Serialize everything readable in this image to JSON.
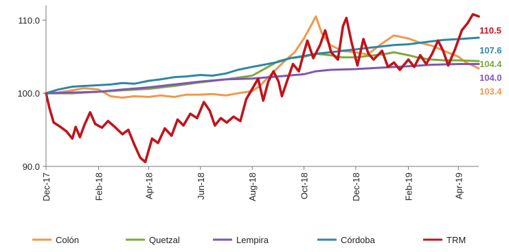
{
  "chart_data": {
    "type": "line",
    "title": "",
    "xlabel": "",
    "ylabel": "",
    "ylim": [
      90,
      112
    ],
    "xlim": [
      "2017-12-01",
      "2019-04-25"
    ],
    "y_ticks": [
      "90.0",
      "100.0",
      "110.0"
    ],
    "x_ticks": [
      {
        "date": "2017-12-01",
        "label": "Dec-17"
      },
      {
        "date": "2018-02-01",
        "label": "Feb-18"
      },
      {
        "date": "2018-04-01",
        "label": "Apr-18"
      },
      {
        "date": "2018-06-01",
        "label": "Jun-18"
      },
      {
        "date": "2018-08-01",
        "label": "Aug-18"
      },
      {
        "date": "2018-10-01",
        "label": "Oct-18"
      },
      {
        "date": "2018-12-01",
        "label": "Dec-18"
      },
      {
        "date": "2019-02-01",
        "label": "Feb-19"
      },
      {
        "date": "2019-04-01",
        "label": "Apr-19"
      }
    ],
    "grid": false,
    "legend_position": "bottom",
    "series": [
      {
        "name": "Colón",
        "color": "#F2974A",
        "end_label": "103.4",
        "points": [
          [
            "2017-12-01",
            100.0
          ],
          [
            "2017-12-15",
            100.1
          ],
          [
            "2018-01-01",
            100.4
          ],
          [
            "2018-01-15",
            100.7
          ],
          [
            "2018-02-01",
            100.5
          ],
          [
            "2018-02-15",
            99.6
          ],
          [
            "2018-03-01",
            99.4
          ],
          [
            "2018-03-15",
            99.6
          ],
          [
            "2018-04-01",
            99.5
          ],
          [
            "2018-04-15",
            99.7
          ],
          [
            "2018-05-01",
            99.5
          ],
          [
            "2018-05-15",
            99.8
          ],
          [
            "2018-06-01",
            99.8
          ],
          [
            "2018-06-15",
            99.9
          ],
          [
            "2018-07-01",
            99.7
          ],
          [
            "2018-07-15",
            100.0
          ],
          [
            "2018-08-01",
            100.3
          ],
          [
            "2018-08-10",
            101.0
          ],
          [
            "2018-08-20",
            102.2
          ],
          [
            "2018-09-01",
            103.6
          ],
          [
            "2018-09-10",
            104.6
          ],
          [
            "2018-09-20",
            105.6
          ],
          [
            "2018-10-01",
            107.5
          ],
          [
            "2018-10-10",
            109.4
          ],
          [
            "2018-10-15",
            110.5
          ],
          [
            "2018-10-22",
            108.2
          ],
          [
            "2018-11-01",
            106.6
          ],
          [
            "2018-11-15",
            105.8
          ],
          [
            "2018-12-01",
            105.6
          ],
          [
            "2018-12-15",
            105.3
          ],
          [
            "2019-01-01",
            106.8
          ],
          [
            "2019-01-15",
            107.9
          ],
          [
            "2019-02-01",
            107.5
          ],
          [
            "2019-02-15",
            106.9
          ],
          [
            "2019-03-01",
            106.5
          ],
          [
            "2019-03-15",
            105.8
          ],
          [
            "2019-04-01",
            105.0
          ],
          [
            "2019-04-10",
            104.2
          ],
          [
            "2019-04-25",
            103.4
          ]
        ]
      },
      {
        "name": "Quetzal",
        "color": "#7EA83B",
        "end_label": "104.4",
        "points": [
          [
            "2017-12-01",
            100.0
          ],
          [
            "2018-01-01",
            100.0
          ],
          [
            "2018-02-01",
            100.2
          ],
          [
            "2018-03-01",
            100.4
          ],
          [
            "2018-04-01",
            100.6
          ],
          [
            "2018-05-01",
            101.0
          ],
          [
            "2018-06-01",
            101.5
          ],
          [
            "2018-07-01",
            101.9
          ],
          [
            "2018-08-01",
            102.4
          ],
          [
            "2018-08-15",
            103.3
          ],
          [
            "2018-09-01",
            104.4
          ],
          [
            "2018-09-15",
            104.8
          ],
          [
            "2018-10-01",
            105.0
          ],
          [
            "2018-10-15",
            105.4
          ],
          [
            "2018-11-01",
            105.2
          ],
          [
            "2018-11-15",
            104.9
          ],
          [
            "2018-12-01",
            104.9
          ],
          [
            "2018-12-15",
            105.1
          ],
          [
            "2019-01-01",
            105.3
          ],
          [
            "2019-01-15",
            105.6
          ],
          [
            "2019-02-01",
            105.2
          ],
          [
            "2019-02-15",
            104.8
          ],
          [
            "2019-03-01",
            104.6
          ],
          [
            "2019-03-15",
            104.5
          ],
          [
            "2019-04-01",
            104.5
          ],
          [
            "2019-04-25",
            104.4
          ]
        ]
      },
      {
        "name": "Lempira",
        "color": "#7E57B3",
        "end_label": "104.0",
        "points": [
          [
            "2017-12-01",
            100.0
          ],
          [
            "2018-01-01",
            100.1
          ],
          [
            "2018-02-01",
            100.2
          ],
          [
            "2018-03-01",
            100.5
          ],
          [
            "2018-04-01",
            100.8
          ],
          [
            "2018-05-01",
            101.2
          ],
          [
            "2018-06-01",
            101.6
          ],
          [
            "2018-07-01",
            101.9
          ],
          [
            "2018-08-01",
            102.0
          ],
          [
            "2018-09-01",
            102.3
          ],
          [
            "2018-10-01",
            102.6
          ],
          [
            "2018-10-15",
            103.0
          ],
          [
            "2018-11-01",
            103.2
          ],
          [
            "2018-12-01",
            103.3
          ],
          [
            "2019-01-01",
            103.5
          ],
          [
            "2019-02-01",
            103.7
          ],
          [
            "2019-03-01",
            103.9
          ],
          [
            "2019-04-01",
            104.0
          ],
          [
            "2019-04-25",
            104.0
          ]
        ]
      },
      {
        "name": "Córdoba",
        "color": "#2E86A6",
        "end_label": "107.6",
        "points": [
          [
            "2017-12-01",
            100.0
          ],
          [
            "2017-12-15",
            100.5
          ],
          [
            "2018-01-01",
            100.9
          ],
          [
            "2018-01-15",
            101.0
          ],
          [
            "2018-02-01",
            101.1
          ],
          [
            "2018-02-15",
            101.2
          ],
          [
            "2018-03-01",
            101.4
          ],
          [
            "2018-03-15",
            101.3
          ],
          [
            "2018-04-01",
            101.7
          ],
          [
            "2018-04-15",
            101.9
          ],
          [
            "2018-05-01",
            102.2
          ],
          [
            "2018-05-15",
            102.3
          ],
          [
            "2018-06-01",
            102.5
          ],
          [
            "2018-06-15",
            102.4
          ],
          [
            "2018-07-01",
            102.7
          ],
          [
            "2018-07-15",
            103.2
          ],
          [
            "2018-08-01",
            103.6
          ],
          [
            "2018-08-15",
            103.9
          ],
          [
            "2018-09-01",
            104.3
          ],
          [
            "2018-09-15",
            104.8
          ],
          [
            "2018-10-01",
            105.1
          ],
          [
            "2018-10-15",
            105.4
          ],
          [
            "2018-11-01",
            105.6
          ],
          [
            "2018-11-15",
            105.8
          ],
          [
            "2018-12-01",
            106.0
          ],
          [
            "2018-12-15",
            106.2
          ],
          [
            "2019-01-01",
            106.4
          ],
          [
            "2019-01-15",
            106.6
          ],
          [
            "2019-02-01",
            106.7
          ],
          [
            "2019-02-15",
            106.9
          ],
          [
            "2019-03-01",
            107.1
          ],
          [
            "2019-03-15",
            107.3
          ],
          [
            "2019-04-01",
            107.4
          ],
          [
            "2019-04-25",
            107.6
          ]
        ]
      },
      {
        "name": "TRM",
        "color": "#C0141C",
        "end_label": "110.5",
        "points": [
          [
            "2017-12-01",
            100.0
          ],
          [
            "2017-12-05",
            98.0
          ],
          [
            "2017-12-10",
            96.0
          ],
          [
            "2017-12-18",
            95.4
          ],
          [
            "2017-12-25",
            94.8
          ],
          [
            "2018-01-01",
            93.8
          ],
          [
            "2018-01-05",
            95.4
          ],
          [
            "2018-01-10",
            94.0
          ],
          [
            "2018-01-15",
            95.6
          ],
          [
            "2018-01-22",
            97.4
          ],
          [
            "2018-01-28",
            95.8
          ],
          [
            "2018-02-05",
            95.3
          ],
          [
            "2018-02-12",
            96.2
          ],
          [
            "2018-02-20",
            95.4
          ],
          [
            "2018-03-01",
            94.4
          ],
          [
            "2018-03-08",
            95.0
          ],
          [
            "2018-03-15",
            93.0
          ],
          [
            "2018-03-22",
            91.2
          ],
          [
            "2018-03-28",
            90.6
          ],
          [
            "2018-04-05",
            93.8
          ],
          [
            "2018-04-12",
            93.2
          ],
          [
            "2018-04-20",
            95.2
          ],
          [
            "2018-04-28",
            94.2
          ],
          [
            "2018-05-05",
            96.4
          ],
          [
            "2018-05-12",
            95.6
          ],
          [
            "2018-05-20",
            97.2
          ],
          [
            "2018-05-28",
            96.6
          ],
          [
            "2018-06-05",
            98.8
          ],
          [
            "2018-06-12",
            97.6
          ],
          [
            "2018-06-18",
            95.6
          ],
          [
            "2018-06-25",
            96.6
          ],
          [
            "2018-07-02",
            96.0
          ],
          [
            "2018-07-10",
            96.8
          ],
          [
            "2018-07-18",
            96.2
          ],
          [
            "2018-07-25",
            99.2
          ],
          [
            "2018-08-01",
            100.6
          ],
          [
            "2018-08-08",
            102.0
          ],
          [
            "2018-08-14",
            99.0
          ],
          [
            "2018-08-20",
            101.6
          ],
          [
            "2018-08-26",
            103.0
          ],
          [
            "2018-09-01",
            101.6
          ],
          [
            "2018-09-05",
            99.6
          ],
          [
            "2018-09-12",
            102.0
          ],
          [
            "2018-09-18",
            104.0
          ],
          [
            "2018-09-25",
            103.0
          ],
          [
            "2018-10-01",
            105.6
          ],
          [
            "2018-10-05",
            107.2
          ],
          [
            "2018-10-12",
            104.8
          ],
          [
            "2018-10-20",
            106.6
          ],
          [
            "2018-10-26",
            108.6
          ],
          [
            "2018-11-02",
            105.6
          ],
          [
            "2018-11-10",
            104.6
          ],
          [
            "2018-11-16",
            109.2
          ],
          [
            "2018-11-20",
            110.3
          ],
          [
            "2018-11-26",
            107.0
          ],
          [
            "2018-12-03",
            103.8
          ],
          [
            "2018-12-10",
            107.4
          ],
          [
            "2018-12-16",
            105.4
          ],
          [
            "2018-12-22",
            104.6
          ],
          [
            "2019-01-01",
            105.8
          ],
          [
            "2019-01-08",
            103.6
          ],
          [
            "2019-01-15",
            104.2
          ],
          [
            "2019-01-22",
            103.2
          ],
          [
            "2019-02-01",
            104.6
          ],
          [
            "2019-02-08",
            103.6
          ],
          [
            "2019-02-15",
            105.2
          ],
          [
            "2019-02-22",
            104.0
          ],
          [
            "2019-03-01",
            105.4
          ],
          [
            "2019-03-08",
            107.2
          ],
          [
            "2019-03-14",
            105.8
          ],
          [
            "2019-03-20",
            103.8
          ],
          [
            "2019-03-28",
            106.0
          ],
          [
            "2019-04-05",
            108.6
          ],
          [
            "2019-04-12",
            109.6
          ],
          [
            "2019-04-18",
            110.8
          ],
          [
            "2019-04-25",
            110.5
          ]
        ]
      }
    ]
  }
}
